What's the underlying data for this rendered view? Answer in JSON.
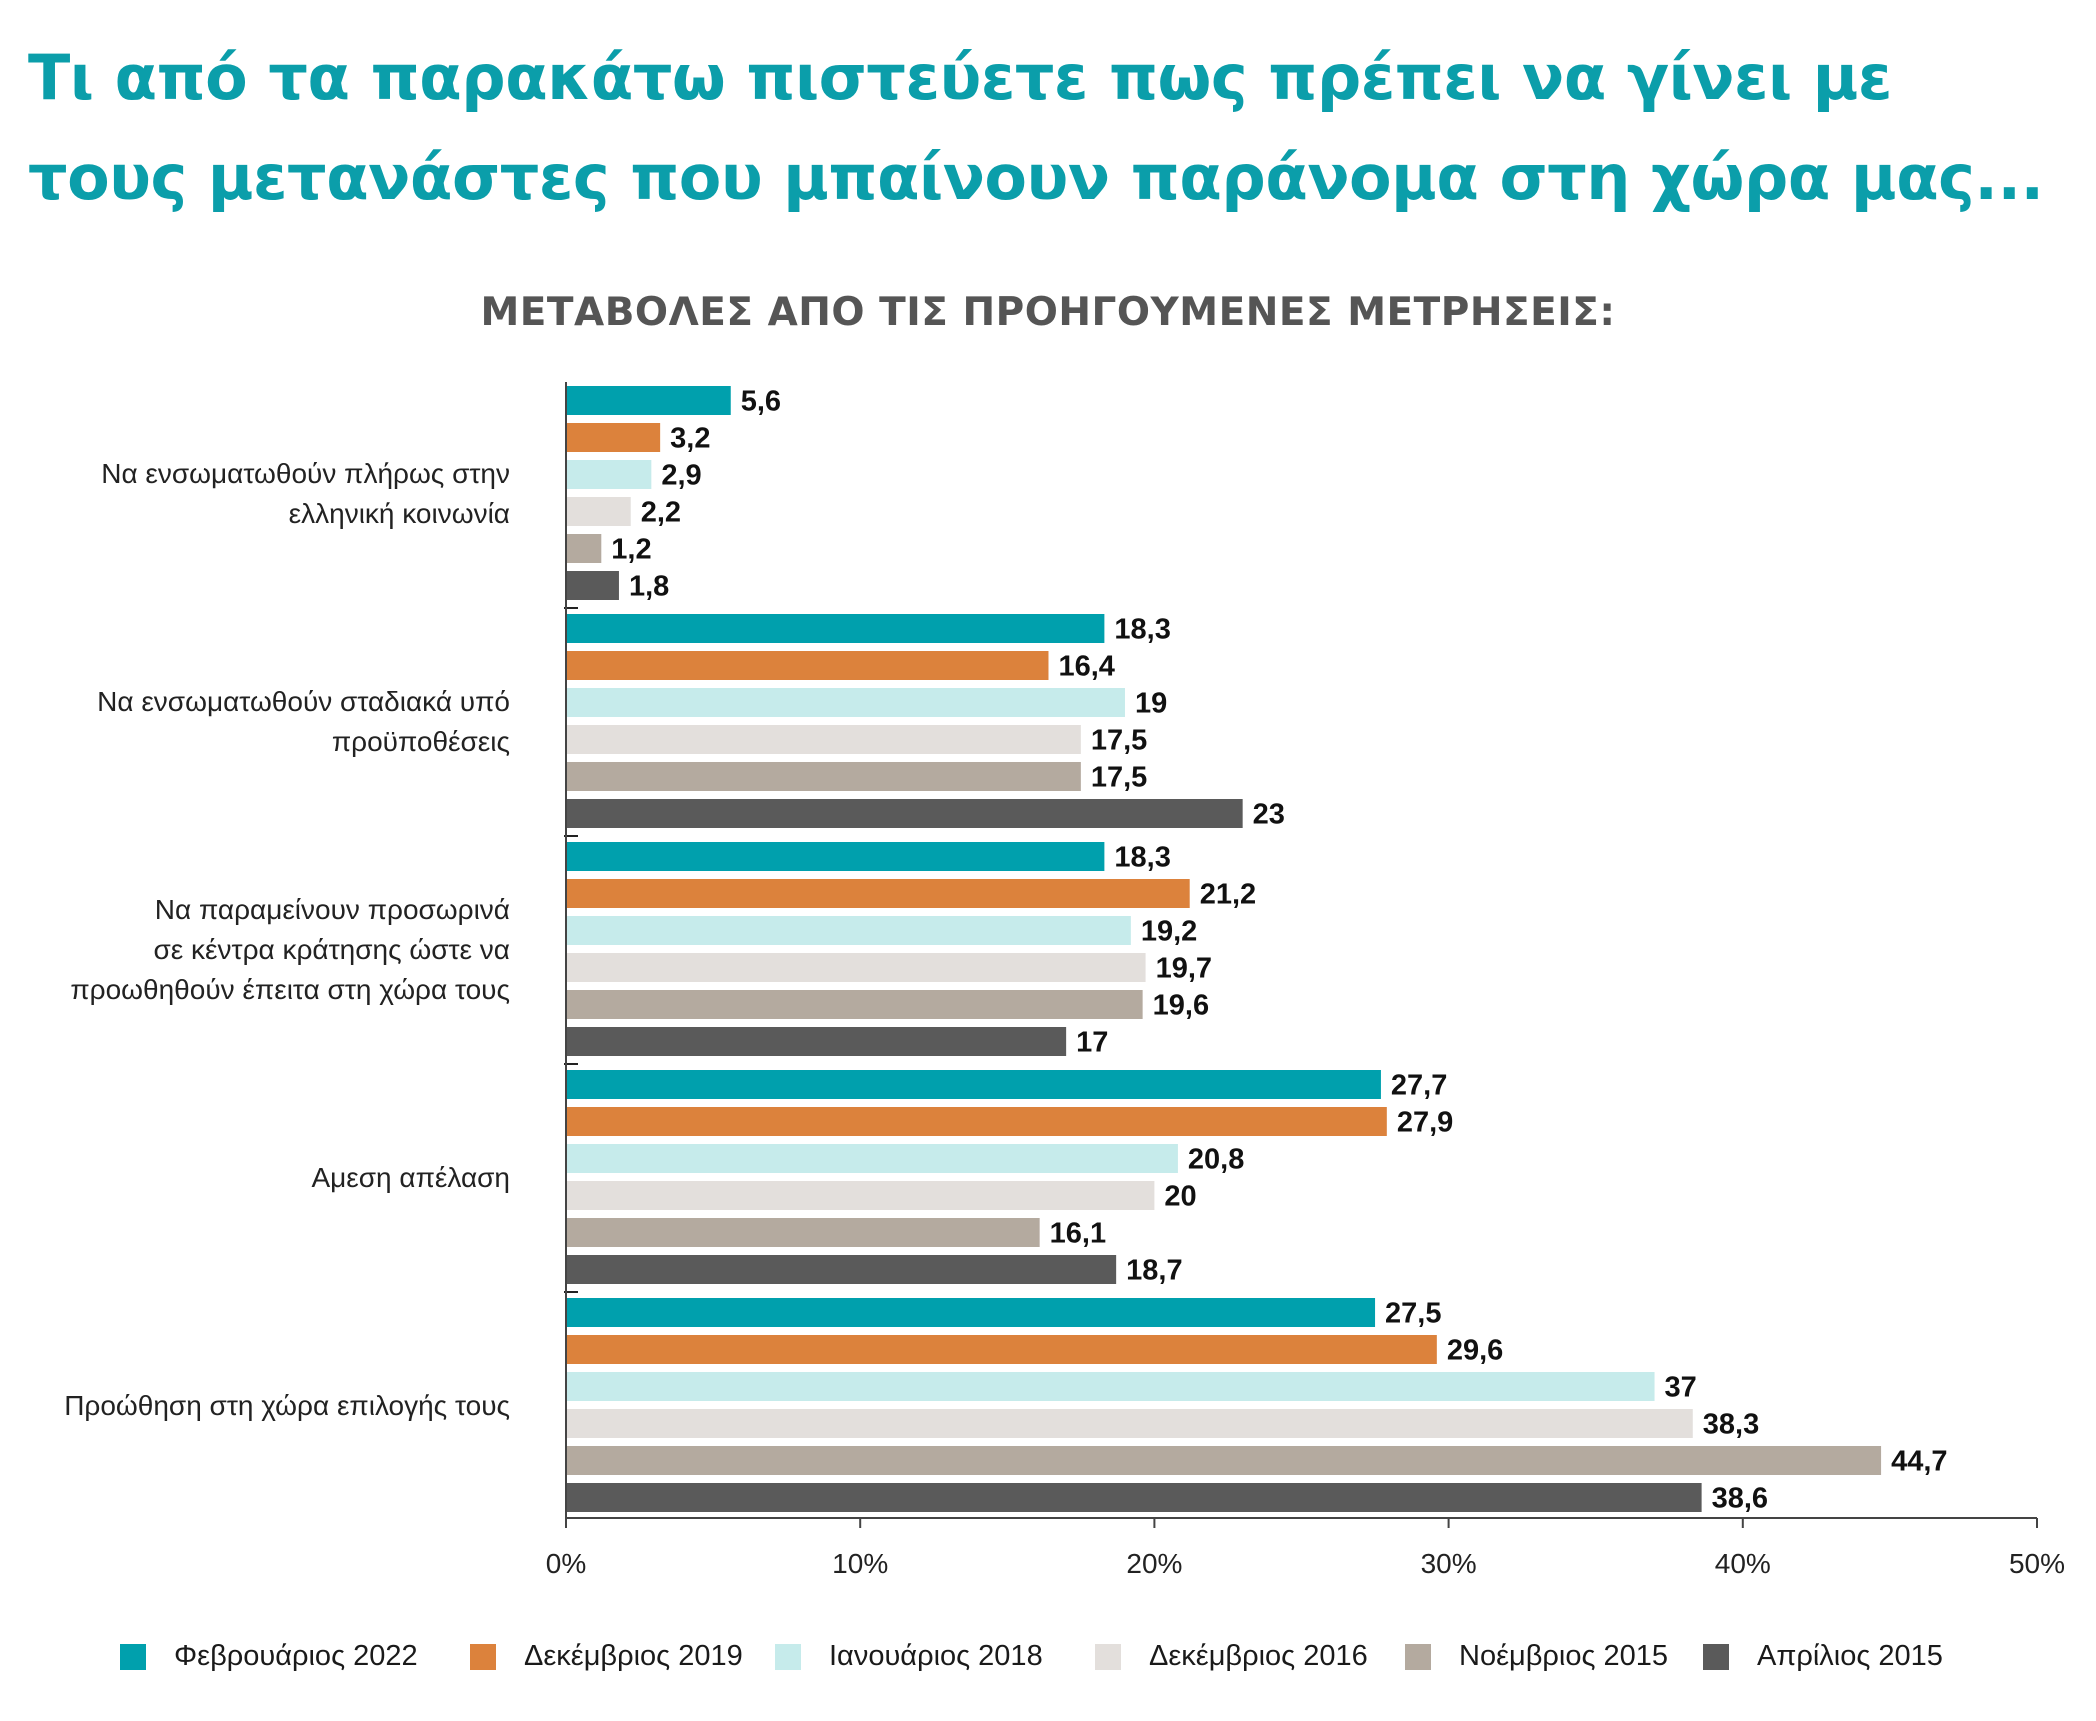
{
  "title": "Τι από τα παρακάτω πιστεύετε πως πρέπει να γίνει με τους μετανάστες που μπαίνουν παράνομα στη χώρα μας...",
  "subtitle": "ΜΕΤΑΒΟΛΕΣ ΑΠΟ ΤΙΣ ΠΡΟΗΓΟΥΜΕΝΕΣ ΜΕΤΡΗΣΕΙΣ:",
  "colors": {
    "title": "#0b9eaa",
    "subtitle": "#555555"
  },
  "chart_data": {
    "type": "bar",
    "orientation": "horizontal",
    "categories": [
      [
        "Να ενσωματωθούν πλήρως στην",
        "ελληνική κοινωνία"
      ],
      [
        "Να ενσωματωθούν σταδιακά υπό",
        "προϋποθέσεις"
      ],
      [
        "Να παραμείνουν προσωρινά",
        "σε κέντρα κράτησης ώστε να",
        "προωθηθούν έπειτα στη χώρα τους"
      ],
      [
        "Αμεση απέλαση"
      ],
      [
        "Προώθηση στη χώρα επιλογής τους"
      ]
    ],
    "series": [
      {
        "name": "Φεβρουάριος 2022",
        "color": "#00a0ad",
        "values": [
          5.6,
          18.3,
          18.3,
          27.7,
          27.5
        ],
        "labels": [
          "5,6",
          "18,3",
          "18,3",
          "27,7",
          "27,5"
        ]
      },
      {
        "name": "Δεκέμβριος 2019",
        "color": "#dc823c",
        "values": [
          3.2,
          16.4,
          21.2,
          27.9,
          29.6
        ],
        "labels": [
          "3,2",
          "16,4",
          "21,2",
          "27,9",
          "29,6"
        ]
      },
      {
        "name": "Ιανουάριος 2018",
        "color": "#c6ebeb",
        "values": [
          2.9,
          19,
          19.2,
          20.8,
          37
        ],
        "labels": [
          "2,9",
          "19",
          "19,2",
          "20,8",
          "37"
        ]
      },
      {
        "name": "Δεκέμβριος 2016",
        "color": "#e3dfdc",
        "values": [
          2.2,
          17.5,
          19.7,
          20,
          38.3
        ],
        "labels": [
          "2,2",
          "17,5",
          "19,7",
          "20",
          "38,3"
        ]
      },
      {
        "name": "Νοέμβριος 2015",
        "color": "#b4aa9f",
        "values": [
          1.2,
          17.5,
          19.6,
          16.1,
          44.7
        ],
        "labels": [
          "1,2",
          "17,5",
          "19,6",
          "16,1",
          "44,7"
        ]
      },
      {
        "name": "Απρίλιος 2015",
        "color": "#5a5a5a",
        "values": [
          1.8,
          23,
          17,
          18.7,
          38.6
        ],
        "labels": [
          "1,8",
          "23",
          "17",
          "18,7",
          "38,6"
        ]
      }
    ],
    "xlim": [
      0,
      50
    ],
    "x_ticks": [
      "0%",
      "10%",
      "20%",
      "30%",
      "40%",
      "50%"
    ],
    "legend_position": "bottom",
    "grid": false
  }
}
